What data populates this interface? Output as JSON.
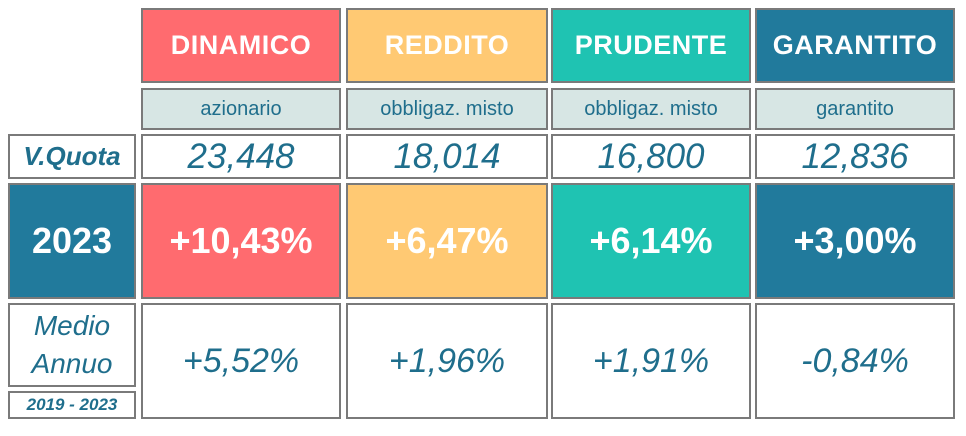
{
  "funds": [
    {
      "name": "DINAMICO",
      "type": "azionario",
      "quota": "23,448",
      "ret_2023": "+10,43%",
      "avg": "+5,52%",
      "color": "#ff6b6f"
    },
    {
      "name": "REDDITO",
      "type": "obbligaz. misto",
      "quota": "18,014",
      "ret_2023": "+6,47%",
      "avg": "+1,96%",
      "color": "#ffc973"
    },
    {
      "name": "PRUDENTE",
      "type": "obbligaz. misto",
      "quota": "16,800",
      "ret_2023": "+6,14%",
      "avg": "+1,91%",
      "color": "#1fc3b2"
    },
    {
      "name": "GARANTITO",
      "type": "garantito",
      "quota": "12,836",
      "ret_2023": "+3,00%",
      "avg": "-0,84%",
      "color": "#217a9c"
    }
  ],
  "rows": {
    "quota_label": "V.Quota",
    "year_label": "2023",
    "avg_label_line1": "Medio",
    "avg_label_line2": "Annuo",
    "period_label": "2019 - 2023"
  }
}
